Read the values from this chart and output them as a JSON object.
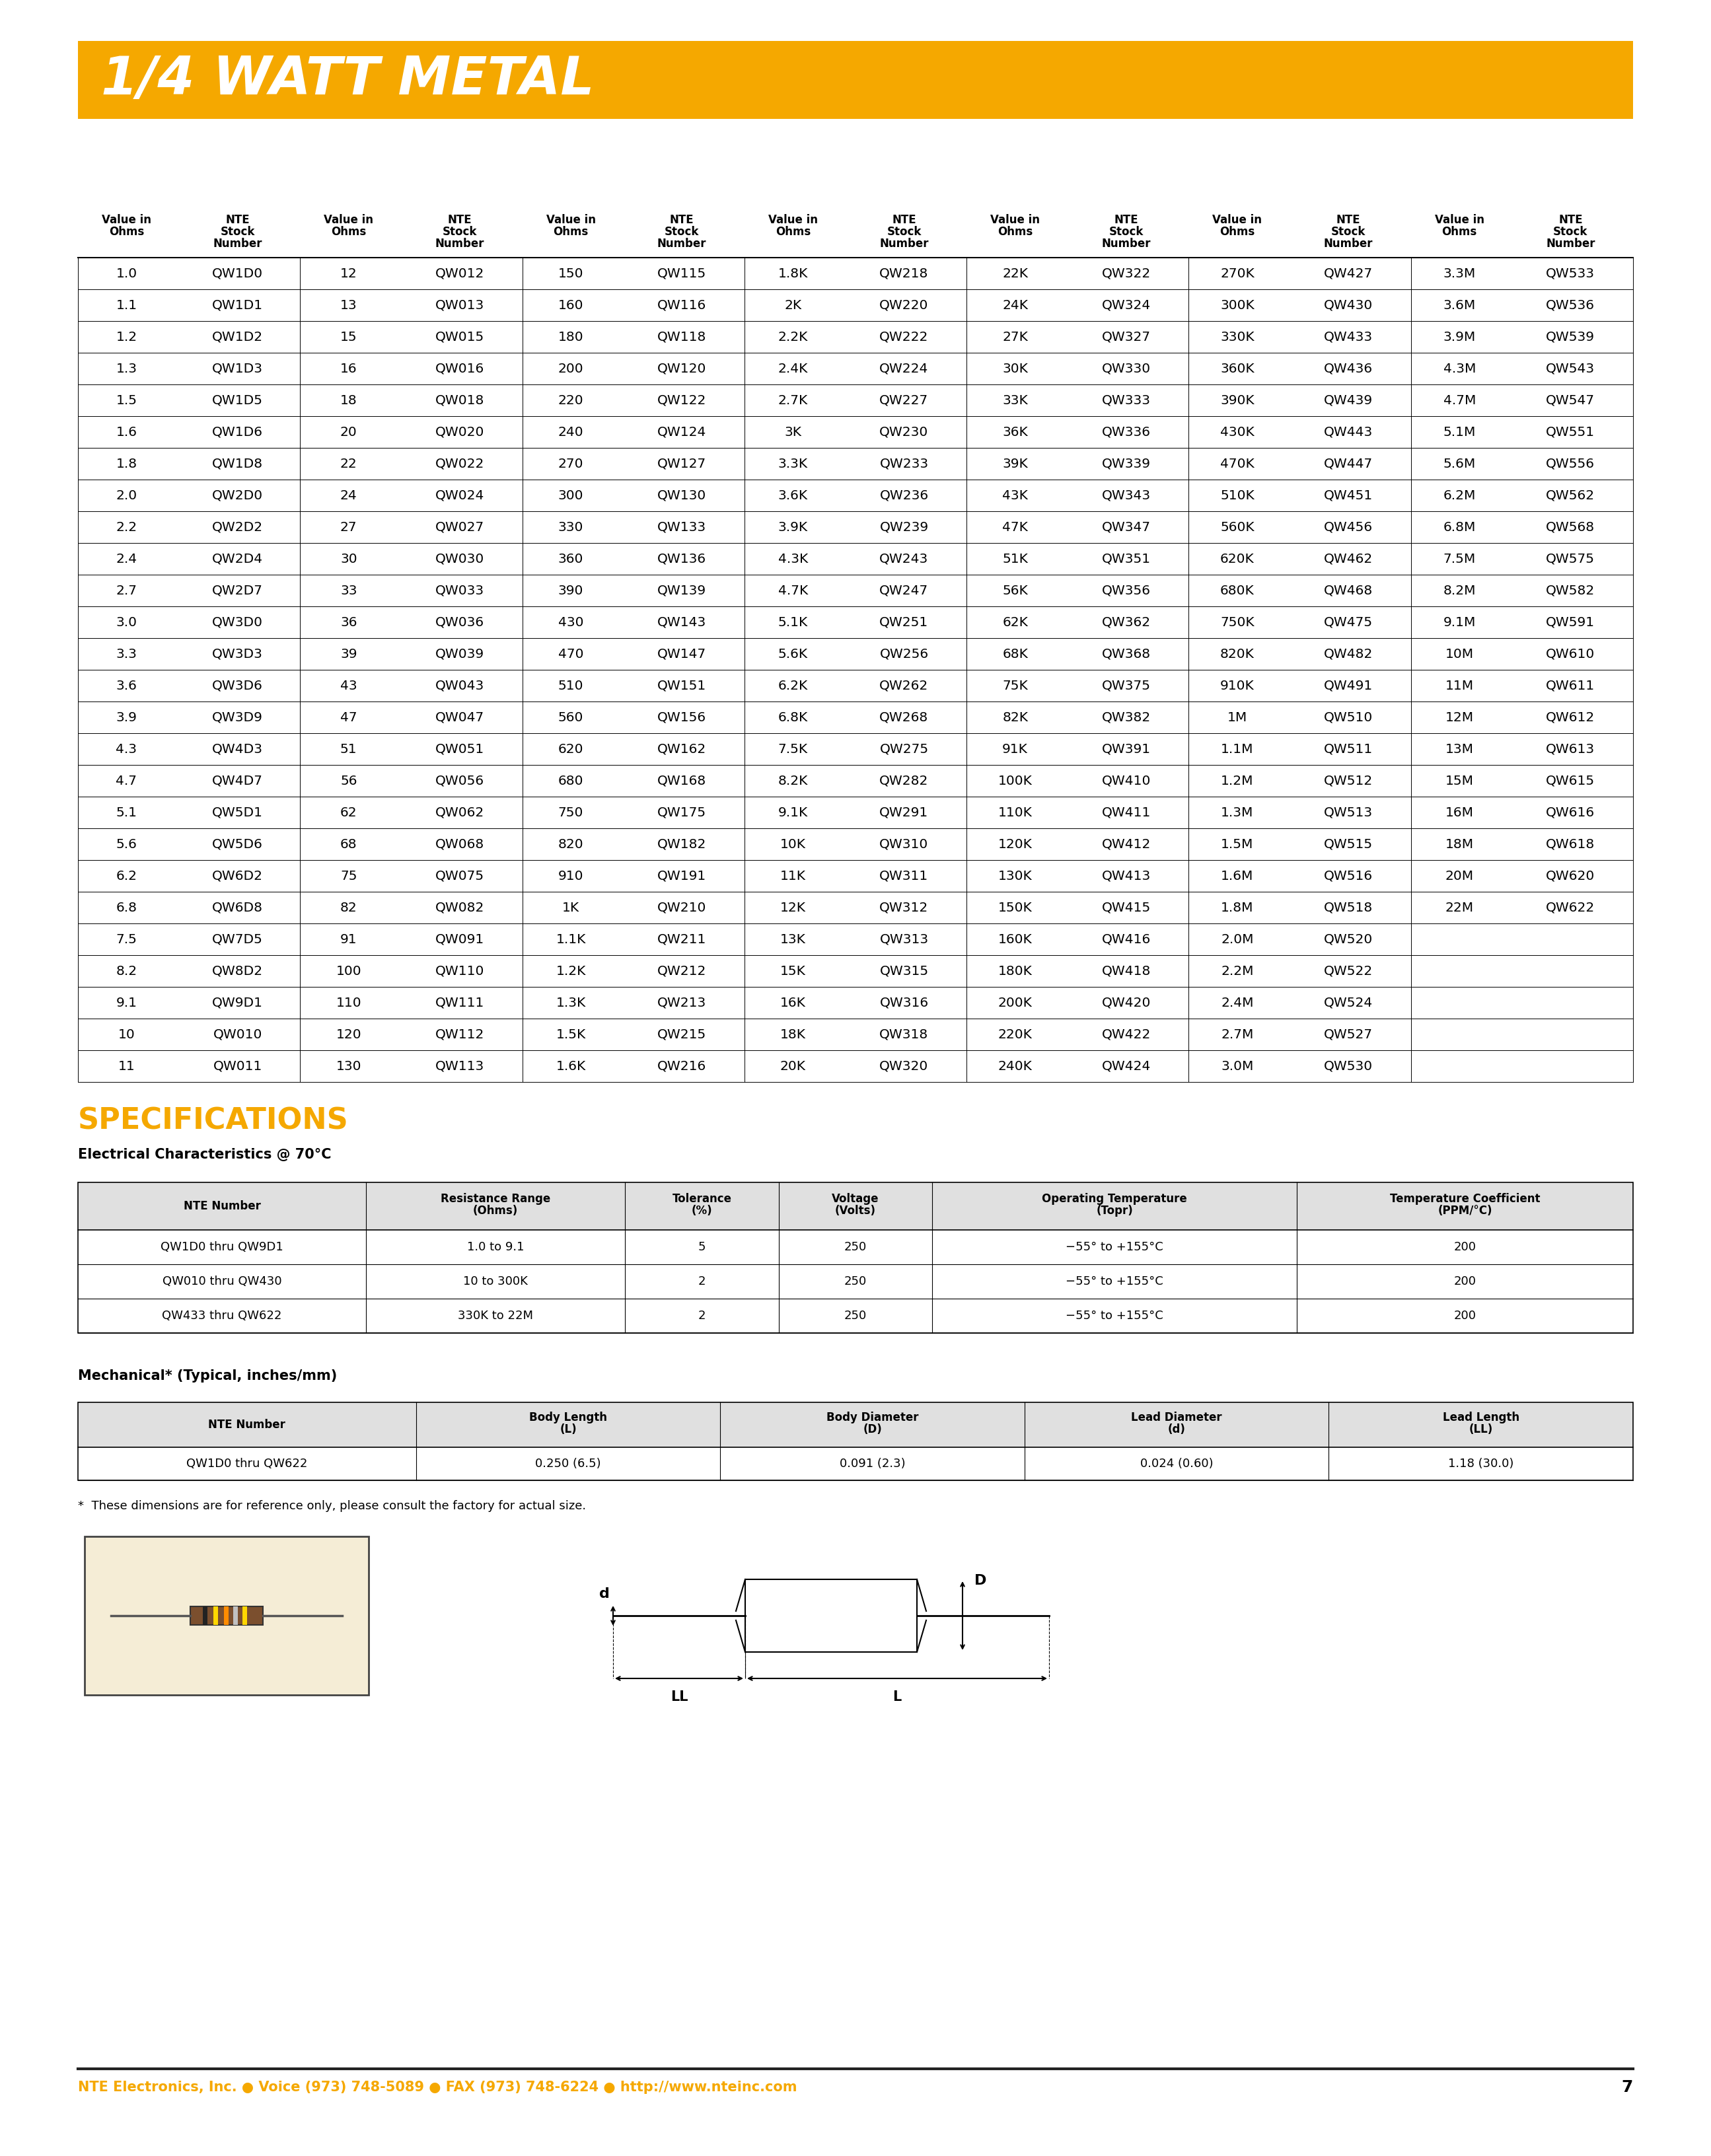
{
  "title": "1/4 WATT METAL",
  "title_bg_color": "#F5A800",
  "title_text_color": "#FFFFFF",
  "page_bg_color": "#FFFFFF",
  "table_data": [
    [
      "1.0",
      "QW1D0",
      "12",
      "QW012",
      "150",
      "QW115",
      "1.8K",
      "QW218",
      "22K",
      "QW322",
      "270K",
      "QW427",
      "3.3M",
      "QW533"
    ],
    [
      "1.1",
      "QW1D1",
      "13",
      "QW013",
      "160",
      "QW116",
      "2K",
      "QW220",
      "24K",
      "QW324",
      "300K",
      "QW430",
      "3.6M",
      "QW536"
    ],
    [
      "1.2",
      "QW1D2",
      "15",
      "QW015",
      "180",
      "QW118",
      "2.2K",
      "QW222",
      "27K",
      "QW327",
      "330K",
      "QW433",
      "3.9M",
      "QW539"
    ],
    [
      "1.3",
      "QW1D3",
      "16",
      "QW016",
      "200",
      "QW120",
      "2.4K",
      "QW224",
      "30K",
      "QW330",
      "360K",
      "QW436",
      "4.3M",
      "QW543"
    ],
    [
      "1.5",
      "QW1D5",
      "18",
      "QW018",
      "220",
      "QW122",
      "2.7K",
      "QW227",
      "33K",
      "QW333",
      "390K",
      "QW439",
      "4.7M",
      "QW547"
    ],
    [
      "1.6",
      "QW1D6",
      "20",
      "QW020",
      "240",
      "QW124",
      "3K",
      "QW230",
      "36K",
      "QW336",
      "430K",
      "QW443",
      "5.1M",
      "QW551"
    ],
    [
      "1.8",
      "QW1D8",
      "22",
      "QW022",
      "270",
      "QW127",
      "3.3K",
      "QW233",
      "39K",
      "QW339",
      "470K",
      "QW447",
      "5.6M",
      "QW556"
    ],
    [
      "2.0",
      "QW2D0",
      "24",
      "QW024",
      "300",
      "QW130",
      "3.6K",
      "QW236",
      "43K",
      "QW343",
      "510K",
      "QW451",
      "6.2M",
      "QW562"
    ],
    [
      "2.2",
      "QW2D2",
      "27",
      "QW027",
      "330",
      "QW133",
      "3.9K",
      "QW239",
      "47K",
      "QW347",
      "560K",
      "QW456",
      "6.8M",
      "QW568"
    ],
    [
      "2.4",
      "QW2D4",
      "30",
      "QW030",
      "360",
      "QW136",
      "4.3K",
      "QW243",
      "51K",
      "QW351",
      "620K",
      "QW462",
      "7.5M",
      "QW575"
    ],
    [
      "2.7",
      "QW2D7",
      "33",
      "QW033",
      "390",
      "QW139",
      "4.7K",
      "QW247",
      "56K",
      "QW356",
      "680K",
      "QW468",
      "8.2M",
      "QW582"
    ],
    [
      "3.0",
      "QW3D0",
      "36",
      "QW036",
      "430",
      "QW143",
      "5.1K",
      "QW251",
      "62K",
      "QW362",
      "750K",
      "QW475",
      "9.1M",
      "QW591"
    ],
    [
      "3.3",
      "QW3D3",
      "39",
      "QW039",
      "470",
      "QW147",
      "5.6K",
      "QW256",
      "68K",
      "QW368",
      "820K",
      "QW482",
      "10M",
      "QW610"
    ],
    [
      "3.6",
      "QW3D6",
      "43",
      "QW043",
      "510",
      "QW151",
      "6.2K",
      "QW262",
      "75K",
      "QW375",
      "910K",
      "QW491",
      "11M",
      "QW611"
    ],
    [
      "3.9",
      "QW3D9",
      "47",
      "QW047",
      "560",
      "QW156",
      "6.8K",
      "QW268",
      "82K",
      "QW382",
      "1M",
      "QW510",
      "12M",
      "QW612"
    ],
    [
      "4.3",
      "QW4D3",
      "51",
      "QW051",
      "620",
      "QW162",
      "7.5K",
      "QW275",
      "91K",
      "QW391",
      "1.1M",
      "QW511",
      "13M",
      "QW613"
    ],
    [
      "4.7",
      "QW4D7",
      "56",
      "QW056",
      "680",
      "QW168",
      "8.2K",
      "QW282",
      "100K",
      "QW410",
      "1.2M",
      "QW512",
      "15M",
      "QW615"
    ],
    [
      "5.1",
      "QW5D1",
      "62",
      "QW062",
      "750",
      "QW175",
      "9.1K",
      "QW291",
      "110K",
      "QW411",
      "1.3M",
      "QW513",
      "16M",
      "QW616"
    ],
    [
      "5.6",
      "QW5D6",
      "68",
      "QW068",
      "820",
      "QW182",
      "10K",
      "QW310",
      "120K",
      "QW412",
      "1.5M",
      "QW515",
      "18M",
      "QW618"
    ],
    [
      "6.2",
      "QW6D2",
      "75",
      "QW075",
      "910",
      "QW191",
      "11K",
      "QW311",
      "130K",
      "QW413",
      "1.6M",
      "QW516",
      "20M",
      "QW620"
    ],
    [
      "6.8",
      "QW6D8",
      "82",
      "QW082",
      "1K",
      "QW210",
      "12K",
      "QW312",
      "150K",
      "QW415",
      "1.8M",
      "QW518",
      "22M",
      "QW622"
    ],
    [
      "7.5",
      "QW7D5",
      "91",
      "QW091",
      "1.1K",
      "QW211",
      "13K",
      "QW313",
      "160K",
      "QW416",
      "2.0M",
      "QW520",
      "",
      ""
    ],
    [
      "8.2",
      "QW8D2",
      "100",
      "QW110",
      "1.2K",
      "QW212",
      "15K",
      "QW315",
      "180K",
      "QW418",
      "2.2M",
      "QW522",
      "",
      ""
    ],
    [
      "9.1",
      "QW9D1",
      "110",
      "QW111",
      "1.3K",
      "QW213",
      "16K",
      "QW316",
      "200K",
      "QW420",
      "2.4M",
      "QW524",
      "",
      ""
    ],
    [
      "10",
      "QW010",
      "120",
      "QW112",
      "1.5K",
      "QW215",
      "18K",
      "QW318",
      "220K",
      "QW422",
      "2.7M",
      "QW527",
      "",
      ""
    ],
    [
      "11",
      "QW011",
      "130",
      "QW113",
      "1.6K",
      "QW216",
      "20K",
      "QW320",
      "240K",
      "QW424",
      "3.0M",
      "QW530",
      "",
      ""
    ]
  ],
  "specs_title": "SPECIFICATIONS",
  "specs_title_color": "#F5A800",
  "elec_header": "Electrical Characteristics @ 70°C",
  "elec_table_headers": [
    "NTE Number",
    "Resistance Range\n(Ohms)",
    "Tolerance\n(%)",
    "Voltage\n(Volts)",
    "Operating Temperature\n(Topr)",
    "Temperature Coefficient\n(PPM/°C)"
  ],
  "elec_table_data": [
    [
      "QW1D0 thru QW9D1",
      "1.0 to 9.1",
      "5",
      "250",
      "−55° to +155°C",
      "200"
    ],
    [
      "QW010 thru QW430",
      "10 to 300K",
      "2",
      "250",
      "−55° to +155°C",
      "200"
    ],
    [
      "QW433 thru QW622",
      "330K to 22M",
      "2",
      "250",
      "−55° to +155°C",
      "200"
    ]
  ],
  "mech_header": "Mechanical* (Typical, inches/mm)",
  "mech_table_headers": [
    "NTE Number",
    "Body Length\n(L)",
    "Body Diameter\n(D)",
    "Lead Diameter\n(d)",
    "Lead Length\n(LL)"
  ],
  "mech_table_data": [
    [
      "QW1D0 thru QW622",
      "0.250 (6.5)",
      "0.091 (2.3)",
      "0.024 (0.60)",
      "1.18 (30.0)"
    ]
  ],
  "footnote": "*  These dimensions are for reference only, please consult the factory for actual size.",
  "footer_text": "NTE Electronics, Inc. ● Voice (973) 748-5089 ● FAX (973) 748-6224 ● http://www.nteinc.com",
  "footer_color": "#F5A800",
  "page_number": "7"
}
